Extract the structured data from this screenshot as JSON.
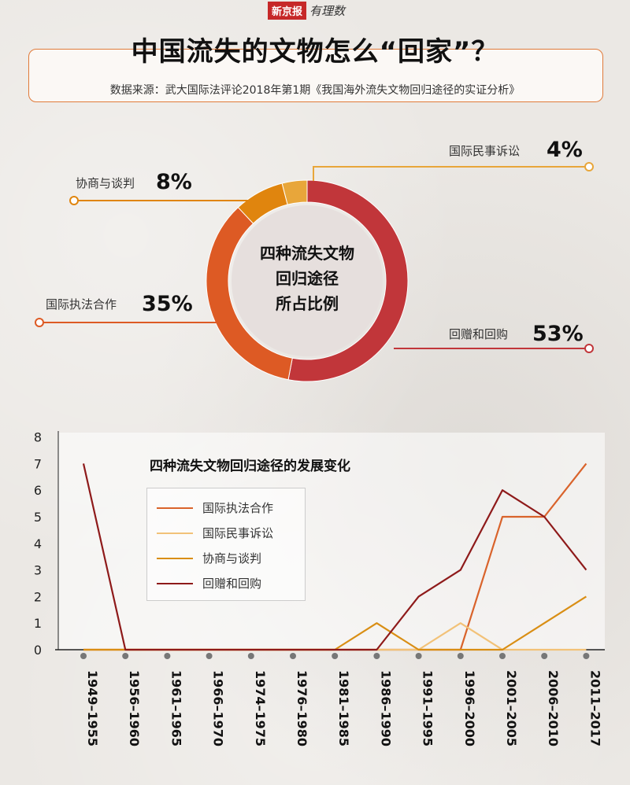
{
  "brand": {
    "name": "新京报",
    "sub": "有理数"
  },
  "title": "中国流失的文物怎么“回家”？",
  "source": "数据来源：武大国际法评论2018年第1期《我国海外流失文物回归途径的实证分析》",
  "donut": {
    "center_lines": [
      "四种流失文物",
      "回归途径",
      "所占比例"
    ],
    "slices": [
      {
        "name": "回赠和回购",
        "value": 53,
        "label": "53%",
        "color": "#c1363a"
      },
      {
        "name": "国际执法合作",
        "value": 35,
        "label": "35%",
        "color": "#dd5a24"
      },
      {
        "name": "协商与谈判",
        "value": 8,
        "label": "8%",
        "color": "#e0850e"
      },
      {
        "name": "国际民事诉讼",
        "value": 4,
        "label": "4%",
        "color": "#e8a63a"
      }
    ]
  },
  "chart_data": {
    "type": "line",
    "title": "四种流失文物回归途径的发展变化",
    "categories": [
      "1949–1955",
      "1956–1960",
      "1961–1965",
      "1966–1970",
      "1974–1975",
      "1976–1980",
      "1981–1985",
      "1986–1990",
      "1991–1995",
      "1996–2000",
      "2001–2005",
      "2006–2010",
      "2011–2017"
    ],
    "ylim": [
      0,
      8
    ],
    "yticks": [
      "0",
      "1",
      "2",
      "3",
      "4",
      "5",
      "6",
      "7",
      "8"
    ],
    "series": [
      {
        "name": "国际执法合作",
        "color": "#d9632b",
        "values": [
          0,
          0,
          0,
          0,
          0,
          0,
          0,
          0,
          0,
          0,
          5,
          5,
          7
        ]
      },
      {
        "name": "国际民事诉讼",
        "color": "#f2c278",
        "values": [
          0,
          0,
          0,
          0,
          0,
          0,
          0,
          0,
          0,
          1,
          0,
          0,
          0
        ]
      },
      {
        "name": "协商与谈判",
        "color": "#d98e14",
        "values": [
          0,
          0,
          0,
          0,
          0,
          0,
          0,
          1,
          0,
          0,
          0,
          1,
          2
        ]
      },
      {
        "name": "回赠和回购",
        "color": "#8e1a1a",
        "values": [
          7,
          0,
          0,
          0,
          0,
          0,
          0,
          0,
          2,
          3,
          6,
          5,
          3
        ]
      }
    ],
    "grid": false,
    "legend": "top-left"
  }
}
